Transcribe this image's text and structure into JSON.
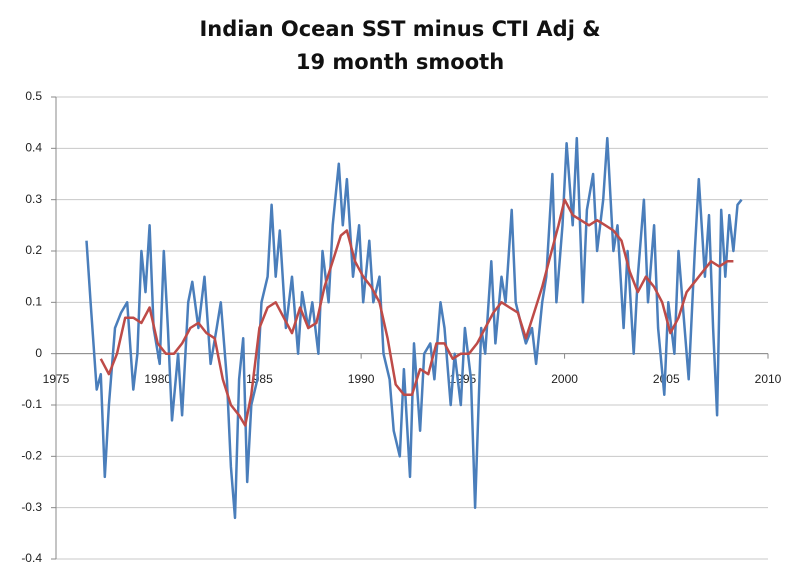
{
  "chart_data": {
    "type": "line",
    "title_lines": [
      "Indian Ocean SST minus CTI Adj &",
      "19 month smooth"
    ],
    "xlim": [
      1975,
      2010
    ],
    "xticks": [
      1975,
      1980,
      1985,
      1990,
      1995,
      2000,
      2005,
      2010
    ],
    "ylim": [
      -0.4,
      0.5
    ],
    "yticks": [
      -0.4,
      -0.3,
      -0.2,
      -0.1,
      0,
      0.1,
      0.2,
      0.3,
      0.4,
      0.5
    ],
    "grid": true,
    "series": [
      {
        "color": "#4a7ebb",
        "x": [
          1976.5,
          1976.7,
          1977.0,
          1977.2,
          1977.4,
          1977.6,
          1977.9,
          1978.2,
          1978.5,
          1978.8,
          1979.0,
          1979.2,
          1979.4,
          1979.6,
          1979.8,
          1980.1,
          1980.3,
          1980.5,
          1980.7,
          1981.0,
          1981.2,
          1981.5,
          1981.7,
          1982.0,
          1982.3,
          1982.6,
          1982.9,
          1983.1,
          1983.4,
          1983.6,
          1983.8,
          1984.0,
          1984.2,
          1984.4,
          1984.6,
          1984.9,
          1985.1,
          1985.4,
          1985.6,
          1985.8,
          1986.0,
          1986.3,
          1986.6,
          1986.9,
          1987.1,
          1987.4,
          1987.6,
          1987.9,
          1988.1,
          1988.4,
          1988.6,
          1988.9,
          1989.1,
          1989.3,
          1989.6,
          1989.9,
          1990.1,
          1990.4,
          1990.6,
          1990.9,
          1991.1,
          1991.4,
          1991.6,
          1991.9,
          1992.1,
          1992.4,
          1992.6,
          1992.9,
          1993.1,
          1993.4,
          1993.6,
          1993.9,
          1994.1,
          1994.4,
          1994.6,
          1994.9,
          1995.1,
          1995.4,
          1995.6,
          1995.9,
          1996.1,
          1996.4,
          1996.6,
          1996.9,
          1997.1,
          1997.4,
          1997.6,
          1997.9,
          1998.1,
          1998.4,
          1998.6,
          1998.9,
          1999.1,
          1999.4,
          1999.6,
          1999.9,
          2000.1,
          2000.4,
          2000.6,
          2000.9,
          2001.1,
          2001.4,
          2001.6,
          2001.9,
          2002.1,
          2002.4,
          2002.6,
          2002.9,
          2003.1,
          2003.4,
          2003.6,
          2003.9,
          2004.1,
          2004.4,
          2004.6,
          2004.9,
          2005.1,
          2005.4,
          2005.6,
          2005.9,
          2006.1,
          2006.4,
          2006.6,
          2006.9,
          2007.1,
          2007.3,
          2007.5,
          2007.7,
          2007.9,
          2008.1,
          2008.3,
          2008.5,
          2008.7
        ],
        "values": [
          0.22,
          0.1,
          -0.07,
          -0.04,
          -0.24,
          -0.1,
          0.05,
          0.08,
          0.1,
          -0.07,
          0.0,
          0.2,
          0.12,
          0.25,
          0.05,
          -0.02,
          0.2,
          0.05,
          -0.13,
          0.0,
          -0.12,
          0.1,
          0.14,
          0.05,
          0.15,
          -0.02,
          0.05,
          0.1,
          -0.05,
          -0.22,
          -0.32,
          -0.05,
          0.03,
          -0.25,
          -0.1,
          -0.05,
          0.1,
          0.15,
          0.29,
          0.15,
          0.24,
          0.05,
          0.15,
          0.0,
          0.12,
          0.05,
          0.1,
          0.0,
          0.2,
          0.1,
          0.25,
          0.37,
          0.25,
          0.34,
          0.15,
          0.25,
          0.1,
          0.22,
          0.1,
          0.15,
          0.0,
          -0.05,
          -0.15,
          -0.2,
          -0.03,
          -0.24,
          0.02,
          -0.15,
          0.0,
          0.02,
          -0.05,
          0.1,
          0.05,
          -0.1,
          0.0,
          -0.1,
          0.05,
          -0.05,
          -0.3,
          0.05,
          0.0,
          0.18,
          0.02,
          0.15,
          0.1,
          0.28,
          0.1,
          0.05,
          0.02,
          0.05,
          -0.02,
          0.1,
          0.15,
          0.35,
          0.1,
          0.25,
          0.41,
          0.25,
          0.42,
          0.1,
          0.28,
          0.35,
          0.2,
          0.3,
          0.42,
          0.2,
          0.25,
          0.05,
          0.2,
          0.0,
          0.15,
          0.3,
          0.1,
          0.25,
          0.05,
          -0.08,
          0.1,
          0.0,
          0.2,
          0.05,
          -0.05,
          0.2,
          0.34,
          0.15,
          0.27,
          0.05,
          -0.12,
          0.28,
          0.15,
          0.27,
          0.2,
          0.29,
          0.3
        ]
      },
      {
        "color": "#be4b48",
        "x": [
          1977.2,
          1977.6,
          1978.0,
          1978.4,
          1978.8,
          1979.2,
          1979.6,
          1980.0,
          1980.4,
          1980.8,
          1981.2,
          1981.6,
          1982.0,
          1982.4,
          1982.8,
          1983.2,
          1983.6,
          1984.0,
          1984.3,
          1984.6,
          1985.0,
          1985.4,
          1985.8,
          1986.2,
          1986.6,
          1987.0,
          1987.4,
          1987.8,
          1988.2,
          1988.6,
          1989.0,
          1989.3,
          1989.7,
          1990.1,
          1990.5,
          1990.9,
          1991.3,
          1991.7,
          1992.1,
          1992.5,
          1992.9,
          1993.3,
          1993.7,
          1994.1,
          1994.5,
          1994.9,
          1995.3,
          1995.7,
          1996.1,
          1996.5,
          1996.9,
          1997.3,
          1997.7,
          1998.1,
          1998.5,
          1998.9,
          1999.3,
          1999.7,
          2000.0,
          2000.4,
          2000.8,
          2001.2,
          2001.6,
          2002.0,
          2002.4,
          2002.8,
          2003.2,
          2003.6,
          2004.0,
          2004.4,
          2004.8,
          2005.2,
          2005.6,
          2006.0,
          2006.4,
          2006.8,
          2007.2,
          2007.6,
          2008.0,
          2008.3
        ],
        "values": [
          -0.01,
          -0.04,
          0.0,
          0.07,
          0.07,
          0.06,
          0.09,
          0.02,
          0.0,
          0.0,
          0.02,
          0.05,
          0.06,
          0.04,
          0.03,
          -0.05,
          -0.1,
          -0.12,
          -0.14,
          -0.08,
          0.05,
          0.09,
          0.1,
          0.07,
          0.04,
          0.09,
          0.05,
          0.06,
          0.13,
          0.18,
          0.23,
          0.24,
          0.18,
          0.15,
          0.13,
          0.1,
          0.03,
          -0.06,
          -0.08,
          -0.08,
          -0.03,
          -0.04,
          0.02,
          0.02,
          -0.01,
          0.0,
          0.0,
          0.02,
          0.05,
          0.08,
          0.1,
          0.09,
          0.08,
          0.03,
          0.08,
          0.13,
          0.19,
          0.25,
          0.3,
          0.27,
          0.26,
          0.25,
          0.26,
          0.25,
          0.24,
          0.22,
          0.16,
          0.12,
          0.15,
          0.13,
          0.1,
          0.04,
          0.07,
          0.12,
          0.14,
          0.16,
          0.18,
          0.17,
          0.18,
          0.18
        ]
      }
    ]
  }
}
